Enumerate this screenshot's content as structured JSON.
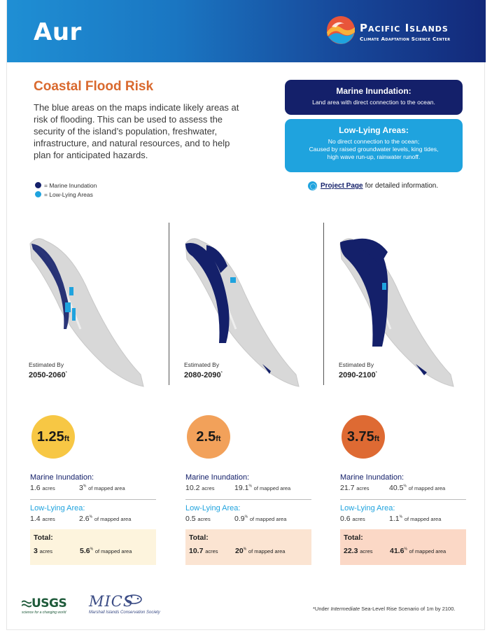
{
  "header": {
    "title": "Aur",
    "org_name": "Pacific Islands",
    "org_sub": "Climate Adaptation Science Center"
  },
  "section": {
    "title": "Coastal Flood Risk",
    "intro": "The blue areas on the maps indicate likely areas at risk of flooding. This can be used to assess the security of the island’s population, freshwater, infrastructure, and natural resources, and to help plan for anticipated hazards."
  },
  "legend": {
    "marine": "= Marine Inundation",
    "low": "= Low-Lying Areas"
  },
  "definitions": {
    "marine_title": "Marine Inundation:",
    "marine_desc": "Land area with direct connection to the ocean.",
    "low_title": "Low-Lying Areas:",
    "low_desc_1": "No direct connection to the ocean;",
    "low_desc_2": "Caused by raised groundwater levels, king tides,",
    "low_desc_3": "high wave run-up, rainwater runoff."
  },
  "project": {
    "link": "Project Page",
    "suffix": "for detailed information."
  },
  "colors": {
    "marine": "#14206a",
    "low": "#1fa3de",
    "accent": "#d9692e"
  },
  "scenarios": [
    {
      "est_label": "Estimated By",
      "period": "2050-2060",
      "rise": "1.25",
      "unit": "ft",
      "circle_color": "#f7c744",
      "marine_label": "Marine Inundation:",
      "marine_acres": "1.6",
      "marine_pct": "3",
      "low_label": "Low-Lying Area:",
      "low_acres": "1.4",
      "low_pct": "2.6",
      "total_label": "Total:",
      "total_acres": "3",
      "total_pct": "5.6",
      "total_bg": "#fdf4dd"
    },
    {
      "est_label": "Estimated By",
      "period": "2080-2090",
      "rise": "2.5",
      "unit": "ft",
      "circle_color": "#f2a15a",
      "marine_label": "Marine Inundation:",
      "marine_acres": "10.2",
      "marine_pct": "19.1",
      "low_label": "Low-Lying Area:",
      "low_acres": "0.5",
      "low_pct": "0.9",
      "total_label": "Total:",
      "total_acres": "10.7",
      "total_pct": "20",
      "total_bg": "#fbe4d2"
    },
    {
      "est_label": "Estimated By",
      "period": "2090-2100",
      "rise": "3.75",
      "unit": "ft",
      "circle_color": "#de6a33",
      "marine_label": "Marine Inundation:",
      "marine_acres": "21.7",
      "marine_pct": "40.5",
      "low_label": "Low-Lying Area:",
      "low_acres": "0.6",
      "low_pct": "1.1",
      "total_label": "Total:",
      "total_acres": "22.3",
      "total_pct": "41.6",
      "total_bg": "#fbd8c6"
    }
  ],
  "units": {
    "acres": "acres",
    "pct_sign": "%",
    "of_mapped": "of mapped area",
    "asterisk": "*"
  },
  "footer": {
    "usgs": "USGS",
    "usgs_tag": "science for a changing world",
    "mics": "MICS",
    "mics_sub": "Marshall Islands Conservation Society",
    "footnote_pre": "*Under ",
    "footnote_em": "Intermediate",
    "footnote_post": " Sea-Level Rise Scenario of 1m by 2100."
  }
}
